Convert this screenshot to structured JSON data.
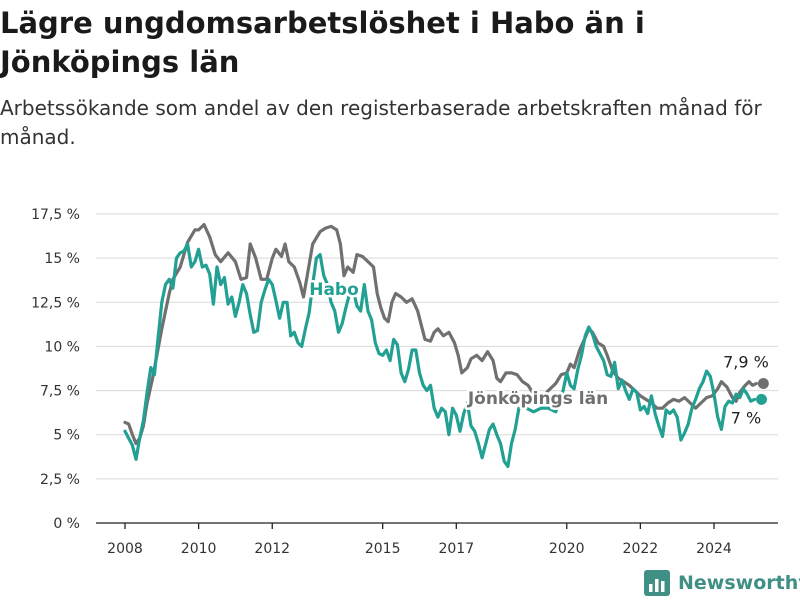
{
  "title": "Lägre ungdomsarbetslöshet i Habo än i Jönköpings län",
  "subtitle": "Arbetssökande som andel av den registerbaserade arbetskraften månad för månad.",
  "brand": {
    "name": "Newsworthy",
    "color": "#3f8f84"
  },
  "chart_data": {
    "type": "line",
    "x_axis": {
      "min": 2007.75,
      "max": 2025.5,
      "ticks": [
        "2008",
        "2010",
        "2012",
        "2015",
        "2017",
        "2020",
        "2022",
        "2024"
      ],
      "tick_values": [
        2008,
        2010,
        2012,
        2015,
        2017,
        2020,
        2022,
        2024
      ]
    },
    "y_axis": {
      "min": 0,
      "max": 17.5,
      "ticks": [
        "0 %",
        "2,5 %",
        "5 %",
        "7,5 %",
        "10 %",
        "12,5 %",
        "15 %",
        "17,5 %"
      ],
      "tick_values": [
        0,
        2.5,
        5,
        7.5,
        10,
        12.5,
        15,
        17.5
      ]
    },
    "grid": true,
    "series": [
      {
        "name": "Jönköpings län",
        "color": "#707070",
        "end_label": "7,9 %",
        "points": [
          [
            2008.0,
            5.7
          ],
          [
            2008.1,
            5.6
          ],
          [
            2008.2,
            5.0
          ],
          [
            2008.3,
            4.5
          ],
          [
            2008.4,
            4.8
          ],
          [
            2008.5,
            5.5
          ],
          [
            2008.6,
            6.8
          ],
          [
            2008.75,
            8.2
          ],
          [
            2009.0,
            11.0
          ],
          [
            2009.2,
            13.0
          ],
          [
            2009.3,
            13.8
          ],
          [
            2009.5,
            14.5
          ],
          [
            2009.7,
            15.9
          ],
          [
            2009.9,
            16.6
          ],
          [
            2010.0,
            16.6
          ],
          [
            2010.15,
            16.9
          ],
          [
            2010.3,
            16.2
          ],
          [
            2010.45,
            15.2
          ],
          [
            2010.6,
            14.8
          ],
          [
            2010.8,
            15.3
          ],
          [
            2011.0,
            14.8
          ],
          [
            2011.15,
            13.8
          ],
          [
            2011.3,
            13.9
          ],
          [
            2011.4,
            15.8
          ],
          [
            2011.55,
            15.0
          ],
          [
            2011.7,
            13.8
          ],
          [
            2011.85,
            13.8
          ],
          [
            2012.0,
            15.0
          ],
          [
            2012.1,
            15.5
          ],
          [
            2012.25,
            15.1
          ],
          [
            2012.35,
            15.8
          ],
          [
            2012.45,
            14.8
          ],
          [
            2012.6,
            14.5
          ],
          [
            2012.75,
            13.6
          ],
          [
            2012.85,
            12.8
          ],
          [
            2012.95,
            14.0
          ],
          [
            2013.1,
            15.8
          ],
          [
            2013.3,
            16.5
          ],
          [
            2013.45,
            16.7
          ],
          [
            2013.6,
            16.8
          ],
          [
            2013.75,
            16.6
          ],
          [
            2013.85,
            15.8
          ],
          [
            2013.95,
            14.0
          ],
          [
            2014.05,
            14.5
          ],
          [
            2014.2,
            14.2
          ],
          [
            2014.3,
            15.2
          ],
          [
            2014.45,
            15.1
          ],
          [
            2014.6,
            14.8
          ],
          [
            2014.75,
            14.5
          ],
          [
            2014.85,
            13.0
          ],
          [
            2014.95,
            12.2
          ],
          [
            2015.05,
            11.6
          ],
          [
            2015.15,
            11.4
          ],
          [
            2015.25,
            12.5
          ],
          [
            2015.35,
            13.0
          ],
          [
            2015.5,
            12.8
          ],
          [
            2015.65,
            12.5
          ],
          [
            2015.8,
            12.7
          ],
          [
            2015.95,
            12.0
          ],
          [
            2016.05,
            11.2
          ],
          [
            2016.15,
            10.4
          ],
          [
            2016.3,
            10.3
          ],
          [
            2016.4,
            10.8
          ],
          [
            2016.5,
            11.0
          ],
          [
            2016.65,
            10.6
          ],
          [
            2016.8,
            10.8
          ],
          [
            2016.95,
            10.2
          ],
          [
            2017.05,
            9.5
          ],
          [
            2017.15,
            8.5
          ],
          [
            2017.3,
            8.8
          ],
          [
            2017.4,
            9.3
          ],
          [
            2017.55,
            9.5
          ],
          [
            2017.7,
            9.2
          ],
          [
            2017.85,
            9.7
          ],
          [
            2018.0,
            9.2
          ],
          [
            2018.1,
            8.2
          ],
          [
            2018.2,
            8.0
          ],
          [
            2018.35,
            8.5
          ],
          [
            2018.5,
            8.5
          ],
          [
            2018.65,
            8.4
          ],
          [
            2018.8,
            8.0
          ],
          [
            2018.95,
            7.8
          ],
          [
            2019.1,
            7.3
          ],
          [
            2019.3,
            7.0
          ],
          [
            2019.5,
            7.5
          ],
          [
            2019.7,
            7.9
          ],
          [
            2019.85,
            8.4
          ],
          [
            2020.0,
            8.5
          ],
          [
            2020.1,
            9.0
          ],
          [
            2020.2,
            8.8
          ],
          [
            2020.35,
            9.8
          ],
          [
            2020.5,
            10.5
          ],
          [
            2020.6,
            11.0
          ],
          [
            2020.7,
            10.8
          ],
          [
            2020.85,
            10.2
          ],
          [
            2021.0,
            10.0
          ],
          [
            2021.1,
            9.5
          ],
          [
            2021.25,
            8.6
          ],
          [
            2021.4,
            8.2
          ],
          [
            2021.55,
            8.0
          ],
          [
            2021.7,
            7.8
          ],
          [
            2021.85,
            7.5
          ],
          [
            2022.0,
            7.2
          ],
          [
            2022.15,
            7.0
          ],
          [
            2022.3,
            6.8
          ],
          [
            2022.45,
            6.5
          ],
          [
            2022.6,
            6.5
          ],
          [
            2022.75,
            6.8
          ],
          [
            2022.9,
            7.0
          ],
          [
            2023.05,
            6.9
          ],
          [
            2023.2,
            7.1
          ],
          [
            2023.35,
            6.8
          ],
          [
            2023.5,
            6.5
          ],
          [
            2023.65,
            6.8
          ],
          [
            2023.8,
            7.1
          ],
          [
            2023.95,
            7.2
          ],
          [
            2024.1,
            7.6
          ],
          [
            2024.2,
            8.0
          ],
          [
            2024.35,
            7.7
          ],
          [
            2024.5,
            7.1
          ],
          [
            2024.6,
            6.9
          ],
          [
            2024.7,
            7.4
          ],
          [
            2024.85,
            7.8
          ],
          [
            2024.95,
            8.0
          ],
          [
            2025.05,
            7.8
          ],
          [
            2025.15,
            7.9
          ]
        ]
      },
      {
        "name": "Habo",
        "color": "#21a093",
        "end_label": "7 %",
        "points": [
          [
            2008.0,
            5.2
          ],
          [
            2008.1,
            4.8
          ],
          [
            2008.2,
            4.4
          ],
          [
            2008.3,
            3.6
          ],
          [
            2008.4,
            4.8
          ],
          [
            2008.5,
            5.8
          ],
          [
            2008.6,
            7.4
          ],
          [
            2008.7,
            8.8
          ],
          [
            2008.8,
            8.4
          ],
          [
            2008.9,
            10.5
          ],
          [
            2009.0,
            12.5
          ],
          [
            2009.1,
            13.5
          ],
          [
            2009.2,
            13.8
          ],
          [
            2009.3,
            13.3
          ],
          [
            2009.4,
            15.0
          ],
          [
            2009.5,
            15.3
          ],
          [
            2009.6,
            15.4
          ],
          [
            2009.7,
            15.8
          ],
          [
            2009.8,
            14.5
          ],
          [
            2009.9,
            14.8
          ],
          [
            2010.0,
            15.5
          ],
          [
            2010.1,
            14.5
          ],
          [
            2010.2,
            14.6
          ],
          [
            2010.3,
            14.1
          ],
          [
            2010.4,
            12.4
          ],
          [
            2010.5,
            14.5
          ],
          [
            2010.6,
            13.5
          ],
          [
            2010.7,
            13.9
          ],
          [
            2010.8,
            12.4
          ],
          [
            2010.9,
            12.8
          ],
          [
            2011.0,
            11.7
          ],
          [
            2011.1,
            12.5
          ],
          [
            2011.2,
            13.5
          ],
          [
            2011.3,
            13.0
          ],
          [
            2011.4,
            11.8
          ],
          [
            2011.5,
            10.8
          ],
          [
            2011.6,
            10.9
          ],
          [
            2011.7,
            12.5
          ],
          [
            2011.8,
            13.2
          ],
          [
            2011.9,
            13.8
          ],
          [
            2012.0,
            13.5
          ],
          [
            2012.1,
            12.6
          ],
          [
            2012.2,
            11.6
          ],
          [
            2012.3,
            12.5
          ],
          [
            2012.4,
            12.5
          ],
          [
            2012.5,
            10.6
          ],
          [
            2012.6,
            10.8
          ],
          [
            2012.7,
            10.2
          ],
          [
            2012.8,
            10.0
          ],
          [
            2012.9,
            11.0
          ],
          [
            2013.0,
            11.9
          ],
          [
            2013.1,
            13.5
          ],
          [
            2013.2,
            15.0
          ],
          [
            2013.3,
            15.2
          ],
          [
            2013.4,
            14.0
          ],
          [
            2013.5,
            13.5
          ],
          [
            2013.6,
            12.5
          ],
          [
            2013.7,
            12.0
          ],
          [
            2013.8,
            10.8
          ],
          [
            2013.9,
            11.3
          ],
          [
            2014.0,
            12.2
          ],
          [
            2014.1,
            13.0
          ],
          [
            2014.2,
            13.2
          ],
          [
            2014.3,
            12.3
          ],
          [
            2014.4,
            12.0
          ],
          [
            2014.5,
            13.5
          ],
          [
            2014.6,
            12.0
          ],
          [
            2014.7,
            11.5
          ],
          [
            2014.8,
            10.2
          ],
          [
            2014.9,
            9.6
          ],
          [
            2015.0,
            9.5
          ],
          [
            2015.1,
            9.8
          ],
          [
            2015.2,
            9.2
          ],
          [
            2015.3,
            10.4
          ],
          [
            2015.4,
            10.1
          ],
          [
            2015.5,
            8.5
          ],
          [
            2015.6,
            8.0
          ],
          [
            2015.7,
            8.7
          ],
          [
            2015.8,
            9.8
          ],
          [
            2015.9,
            9.8
          ],
          [
            2016.0,
            8.5
          ],
          [
            2016.1,
            7.8
          ],
          [
            2016.2,
            7.5
          ],
          [
            2016.3,
            7.8
          ],
          [
            2016.4,
            6.5
          ],
          [
            2016.5,
            6.0
          ],
          [
            2016.6,
            6.5
          ],
          [
            2016.7,
            6.3
          ],
          [
            2016.8,
            5.0
          ],
          [
            2016.9,
            6.5
          ],
          [
            2017.0,
            6.1
          ],
          [
            2017.1,
            5.2
          ],
          [
            2017.2,
            6.2
          ],
          [
            2017.3,
            6.8
          ],
          [
            2017.4,
            5.5
          ],
          [
            2017.5,
            5.2
          ],
          [
            2017.6,
            4.5
          ],
          [
            2017.7,
            3.7
          ],
          [
            2017.8,
            4.5
          ],
          [
            2017.9,
            5.3
          ],
          [
            2018.0,
            5.6
          ],
          [
            2018.1,
            5.0
          ],
          [
            2018.2,
            4.5
          ],
          [
            2018.3,
            3.5
          ],
          [
            2018.4,
            3.2
          ],
          [
            2018.5,
            4.5
          ],
          [
            2018.6,
            5.3
          ],
          [
            2018.7,
            6.5
          ],
          [
            2018.9,
            6.5
          ],
          [
            2019.1,
            6.3
          ],
          [
            2019.3,
            6.5
          ],
          [
            2019.5,
            6.5
          ],
          [
            2019.7,
            6.3
          ],
          [
            2019.8,
            6.8
          ],
          [
            2019.9,
            7.5
          ],
          [
            2020.0,
            8.5
          ],
          [
            2020.1,
            7.8
          ],
          [
            2020.2,
            7.6
          ],
          [
            2020.3,
            8.7
          ],
          [
            2020.4,
            9.5
          ],
          [
            2020.5,
            10.6
          ],
          [
            2020.6,
            11.1
          ],
          [
            2020.7,
            10.7
          ],
          [
            2020.8,
            10.0
          ],
          [
            2020.9,
            9.6
          ],
          [
            2021.0,
            9.2
          ],
          [
            2021.1,
            8.4
          ],
          [
            2021.2,
            8.3
          ],
          [
            2021.3,
            9.1
          ],
          [
            2021.4,
            7.6
          ],
          [
            2021.5,
            8.1
          ],
          [
            2021.6,
            7.5
          ],
          [
            2021.7,
            7.0
          ],
          [
            2021.8,
            7.6
          ],
          [
            2021.9,
            7.4
          ],
          [
            2022.0,
            6.4
          ],
          [
            2022.1,
            6.6
          ],
          [
            2022.2,
            6.2
          ],
          [
            2022.3,
            7.2
          ],
          [
            2022.4,
            6.2
          ],
          [
            2022.5,
            5.5
          ],
          [
            2022.6,
            4.9
          ],
          [
            2022.7,
            6.4
          ],
          [
            2022.8,
            6.2
          ],
          [
            2022.9,
            6.4
          ],
          [
            2023.0,
            6.0
          ],
          [
            2023.1,
            4.7
          ],
          [
            2023.2,
            5.1
          ],
          [
            2023.3,
            5.6
          ],
          [
            2023.4,
            6.5
          ],
          [
            2023.5,
            7.0
          ],
          [
            2023.6,
            7.6
          ],
          [
            2023.7,
            8.0
          ],
          [
            2023.8,
            8.6
          ],
          [
            2023.9,
            8.3
          ],
          [
            2024.0,
            7.3
          ],
          [
            2024.1,
            6.0
          ],
          [
            2024.2,
            5.3
          ],
          [
            2024.3,
            6.6
          ],
          [
            2024.4,
            6.9
          ],
          [
            2024.5,
            6.8
          ],
          [
            2024.6,
            7.3
          ],
          [
            2024.7,
            7.1
          ],
          [
            2024.8,
            7.6
          ],
          [
            2024.9,
            7.3
          ],
          [
            2025.0,
            6.9
          ],
          [
            2025.1,
            7.0
          ]
        ]
      }
    ],
    "annotations": [
      {
        "text": "Habo",
        "series": "Habo"
      },
      {
        "text": "Jönköpings län",
        "series": "Jönköpings län"
      }
    ]
  }
}
